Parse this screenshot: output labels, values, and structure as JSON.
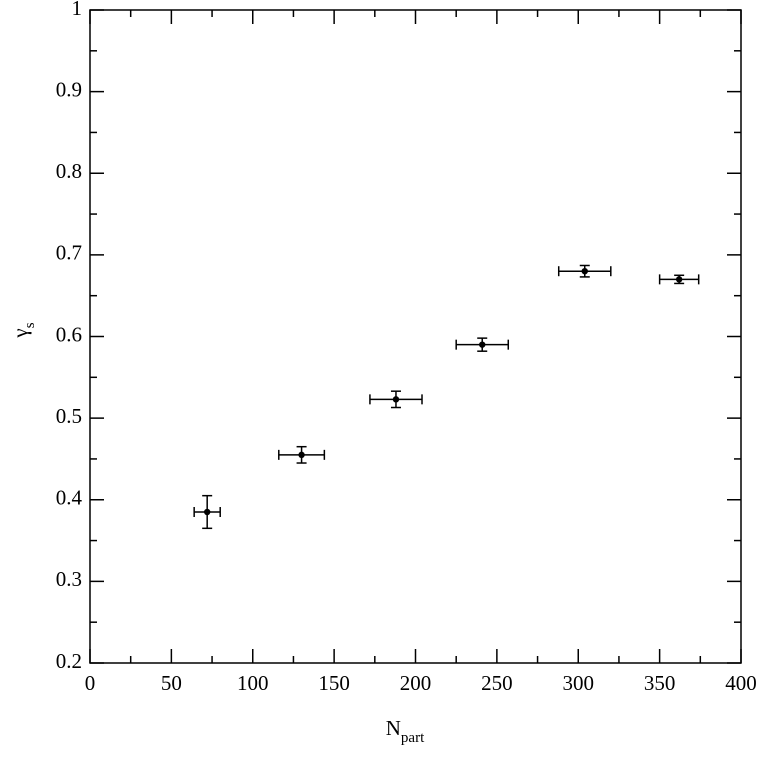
{
  "chart_data": {
    "type": "scatter",
    "x_label": "N",
    "x_label_sub": "part",
    "y_label": "γ",
    "y_label_sub": "s",
    "x": [
      72,
      130,
      188,
      241,
      304,
      362
    ],
    "xerr": [
      8,
      14,
      16,
      16,
      16,
      12
    ],
    "values": [
      0.385,
      0.455,
      0.523,
      0.59,
      0.68,
      0.67
    ],
    "yerr": [
      0.02,
      0.01,
      0.01,
      0.008,
      0.007,
      0.005
    ],
    "color": "#000000",
    "xlim": [
      0,
      400
    ],
    "xticks": [
      0,
      50,
      100,
      150,
      200,
      250,
      300,
      350,
      400
    ],
    "xminorticks": [
      25,
      75,
      125,
      175,
      225,
      275,
      325,
      375
    ],
    "ylim": [
      0.2,
      1
    ],
    "yticks": [
      0.2,
      0.3,
      0.4,
      0.5,
      0.6,
      0.7,
      0.8,
      0.9,
      1
    ],
    "yminorticks": [
      0.25,
      0.35,
      0.45,
      0.55,
      0.65,
      0.75,
      0.85,
      0.95
    ]
  }
}
